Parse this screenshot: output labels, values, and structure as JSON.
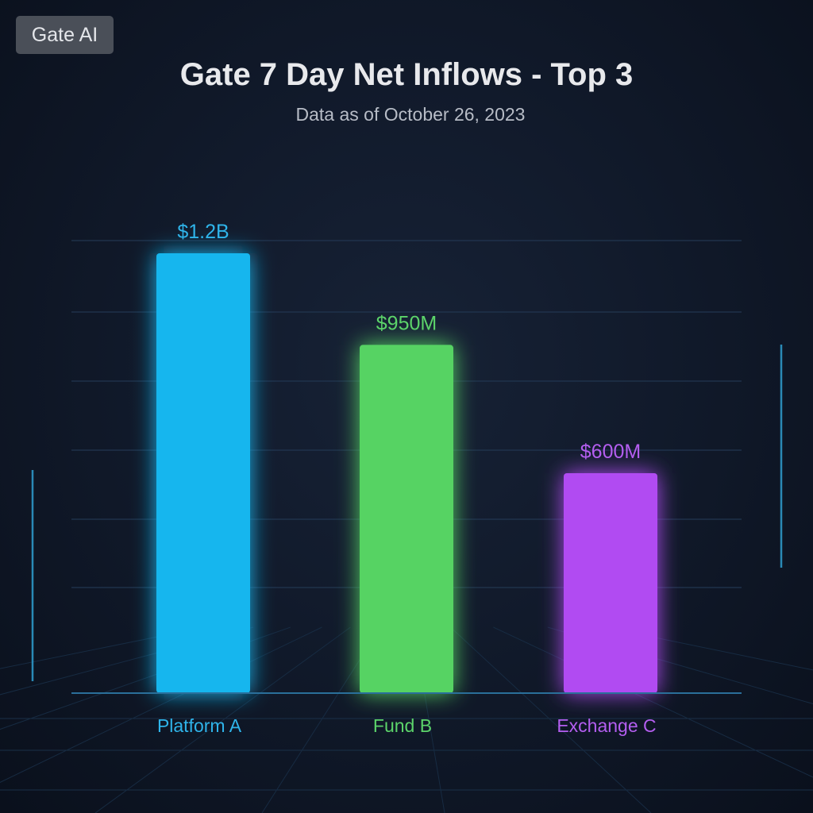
{
  "badge": {
    "label": "Gate AI"
  },
  "chart_data": {
    "type": "bar",
    "title": "Gate 7 Day Net Inflows - Top 3",
    "subtitle": "Data as of October 26, 2023",
    "categories": [
      "Platform A",
      "Fund B",
      "Exchange C"
    ],
    "values": [
      1200000000,
      950000000,
      600000000
    ],
    "data_labels": [
      "$1.2B",
      "$950M",
      "$600M"
    ],
    "colors": [
      "#18b6ee",
      "#56d364",
      "#b14cf2"
    ],
    "label_colors": [
      "#2fb4ea",
      "#5cd46a",
      "#b45ef0"
    ],
    "ylim": [
      0,
      1300000000
    ],
    "grid": true,
    "legend": "none"
  }
}
